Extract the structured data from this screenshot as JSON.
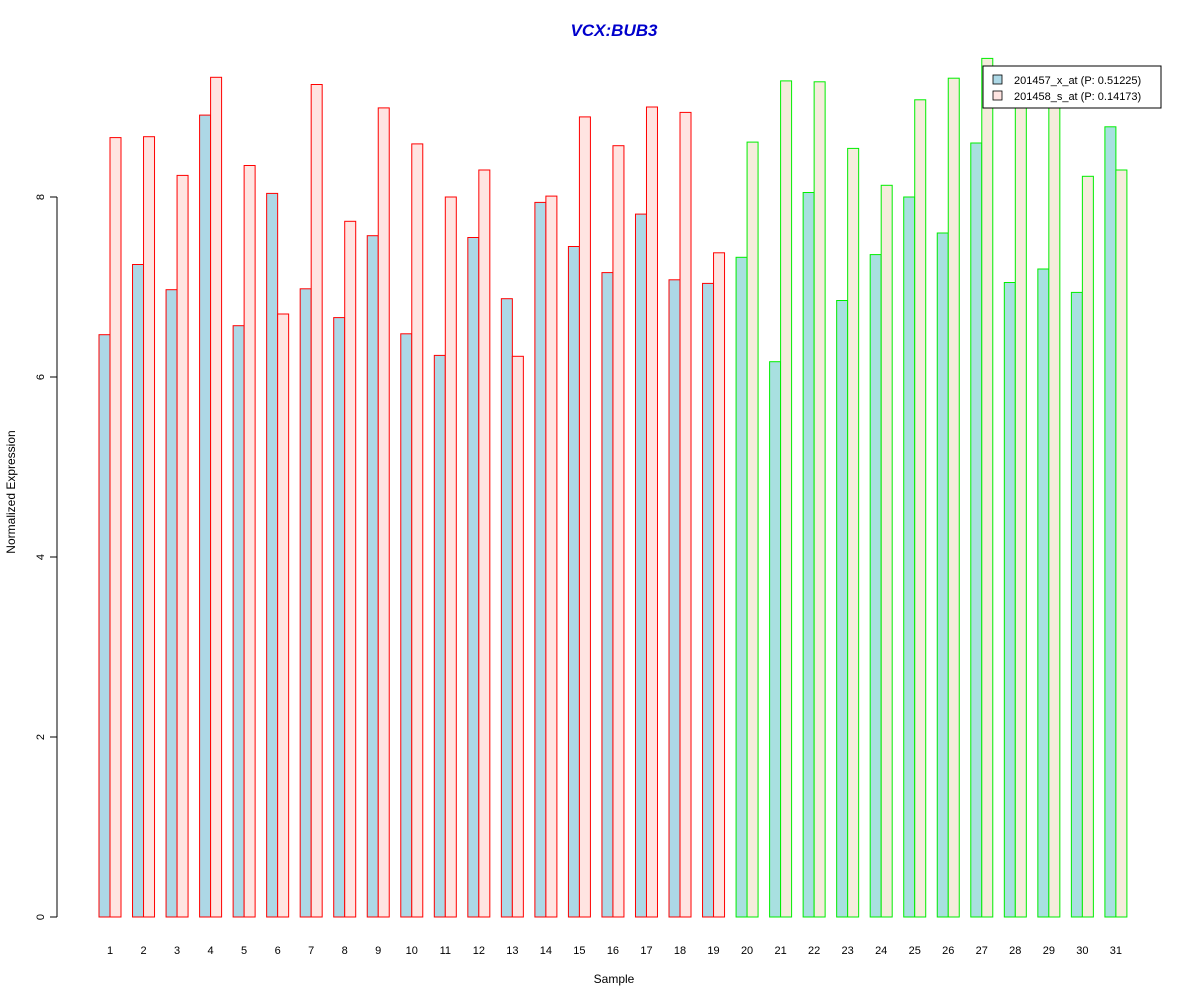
{
  "chart_data": {
    "type": "bar",
    "title": "VCX:BUB3",
    "xlabel": "Sample",
    "ylabel": "Normalized Expression",
    "ylim": [
      0,
      9.5
    ],
    "yticks": [
      0,
      2,
      4,
      6,
      8
    ],
    "categories": [
      "1",
      "2",
      "3",
      "4",
      "5",
      "6",
      "7",
      "8",
      "9",
      "10",
      "11",
      "12",
      "13",
      "14",
      "15",
      "16",
      "17",
      "18",
      "19",
      "20",
      "21",
      "22",
      "23",
      "24",
      "25",
      "26",
      "27",
      "28",
      "29",
      "30",
      "31"
    ],
    "series": [
      {
        "name": "201457_x_at (P: 0.51225)",
        "values": [
          6.47,
          7.25,
          6.97,
          8.91,
          6.57,
          8.04,
          6.98,
          6.66,
          7.57,
          6.48,
          6.24,
          7.55,
          6.87,
          7.94,
          7.45,
          7.16,
          7.81,
          7.08,
          7.04,
          7.33,
          6.17,
          8.05,
          6.85,
          7.36,
          8.0,
          7.6,
          8.6,
          7.05,
          7.2,
          6.94,
          8.78
        ]
      },
      {
        "name": "201458_s_at (P: 0.14173)",
        "values": [
          8.66,
          8.67,
          8.24,
          9.33,
          8.35,
          6.7,
          9.25,
          7.73,
          8.99,
          8.59,
          8.0,
          8.3,
          6.23,
          8.01,
          8.89,
          8.57,
          9.0,
          8.94,
          7.38,
          8.61,
          9.29,
          9.28,
          8.54,
          8.13,
          9.08,
          9.32,
          9.54,
          9.25,
          9.18,
          8.23,
          8.3
        ]
      }
    ],
    "groups": [
      {
        "from": 1,
        "to": 19,
        "border": "#ff0000",
        "fills": [
          "#add8e6",
          "#ffe4e1"
        ]
      },
      {
        "from": 20,
        "to": 31,
        "border": "#00ee00",
        "fills": [
          "#a8e0e0",
          "#f5ecdc"
        ]
      }
    ],
    "legend_position": "top-right",
    "legend_swatches": [
      "#add8e6",
      "#ffe4e1"
    ],
    "grid": false
  }
}
